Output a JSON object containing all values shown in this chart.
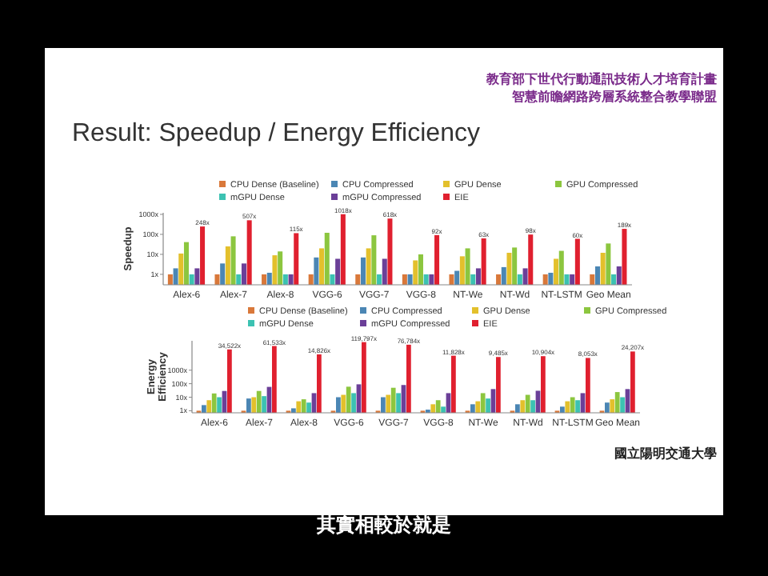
{
  "chart_data": [
    {
      "type": "bar",
      "title": "Result: Speedup / Energy Efficiency",
      "ylabel": "Speedup",
      "annotations": [
        "教育部下世代行動通訊技術人才培育計畫",
        "智慧前瞻網路跨層系統整合教學聯盟",
        "國立陽明交通大學",
        "其實相較於就是"
      ],
      "categories": [
        "Alex-6",
        "Alex-7",
        "Alex-8",
        "VGG-6",
        "VGG-7",
        "VGG-8",
        "NT-We",
        "NT-Wd",
        "NT-LSTM",
        "Geo Mean"
      ],
      "log": true,
      "ylim": [
        0.3,
        1200
      ],
      "yticks": [
        {
          "value": 1,
          "label": "1x"
        },
        {
          "value": 10,
          "label": "10x"
        },
        {
          "value": 100,
          "label": "100x"
        },
        {
          "value": 1000,
          "label": "1000x"
        }
      ],
      "legend": "top",
      "series": [
        {
          "name": "CPU Dense (Baseline)",
          "color": "#d9783a",
          "values": [
            1,
            1,
            1,
            1,
            1,
            1,
            1,
            1,
            1,
            1
          ]
        },
        {
          "name": "CPU Compressed",
          "color": "#4b86b4",
          "values": [
            2,
            3.5,
            1.2,
            7,
            7,
            1,
            1.5,
            2.3,
            1.2,
            2.5
          ]
        },
        {
          "name": "GPU Dense",
          "color": "#e3c02c",
          "values": [
            11,
            25,
            9,
            20,
            20,
            5,
            8,
            12,
            6,
            12
          ]
        },
        {
          "name": "GPU Compressed",
          "color": "#8cc63f",
          "values": [
            41,
            80,
            14,
            120,
            90,
            10,
            20,
            22,
            15,
            35
          ]
        },
        {
          "name": "mGPU Dense",
          "color": "#3cc2b2",
          "values": [
            1,
            1,
            1,
            1,
            1,
            1,
            1,
            1,
            1,
            1
          ]
        },
        {
          "name": "mGPU Compressed",
          "color": "#6b3f98",
          "values": [
            2,
            3.5,
            1,
            6,
            6,
            1,
            2,
            2,
            1,
            2.5
          ]
        },
        {
          "name": "EIE",
          "color": "#e0202f",
          "values": [
            248,
            507,
            115,
            1018,
            618,
            92,
            63,
            98,
            60,
            189
          ],
          "value_labels": [
            "248x",
            "507x",
            "115x",
            "1018x",
            "618x",
            "92x",
            "63x",
            "98x",
            "60x",
            "189x"
          ]
        }
      ]
    },
    {
      "type": "bar",
      "ylabel": "Energy Efficiency",
      "categories": [
        "Alex-6",
        "Alex-7",
        "Alex-8",
        "VGG-6",
        "VGG-7",
        "VGG-8",
        "NT-We",
        "NT-Wd",
        "NT-LSTM",
        "Geo Mean"
      ],
      "log": true,
      "ylim": [
        0.7,
        150000
      ],
      "yticks": [
        {
          "value": 1,
          "label": "1x"
        },
        {
          "value": 10,
          "label": "10x"
        },
        {
          "value": 100,
          "label": "100x"
        },
        {
          "value": 1000,
          "label": "1000x"
        }
      ],
      "legend": "top",
      "series": [
        {
          "name": "CPU Dense (Baseline)",
          "color": "#d9783a",
          "values": [
            1,
            1,
            1,
            1,
            1,
            1,
            1,
            1,
            1,
            1
          ]
        },
        {
          "name": "CPU Compressed",
          "color": "#4b86b4",
          "values": [
            2.6,
            8,
            1.5,
            10,
            10,
            1.2,
            3,
            3,
            2,
            4
          ]
        },
        {
          "name": "GPU Dense",
          "color": "#e3c02c",
          "values": [
            6,
            10,
            5,
            15,
            15,
            3,
            5,
            6,
            5,
            7
          ]
        },
        {
          "name": "GPU Compressed",
          "color": "#8cc63f",
          "values": [
            19,
            29,
            7,
            60,
            50,
            6,
            20,
            15,
            10,
            24
          ]
        },
        {
          "name": "mGPU Dense",
          "color": "#3cc2b2",
          "values": [
            10,
            12,
            4,
            20,
            20,
            2,
            8,
            6,
            6,
            10
          ]
        },
        {
          "name": "mGPU Compressed",
          "color": "#6b3f98",
          "values": [
            29,
            58,
            20,
            90,
            80,
            20,
            40,
            30,
            20,
            40
          ]
        },
        {
          "name": "EIE",
          "color": "#e0202f",
          "values": [
            34522,
            61533,
            14826,
            119797,
            76784,
            11828,
            9485,
            10904,
            8053,
            24207
          ],
          "value_labels": [
            "34,522x",
            "61,533x",
            "14,826x",
            "119,797x",
            "76,784x",
            "11,828x",
            "9,485x",
            "10,904x",
            "8,053x",
            "24,207x"
          ]
        }
      ]
    }
  ]
}
